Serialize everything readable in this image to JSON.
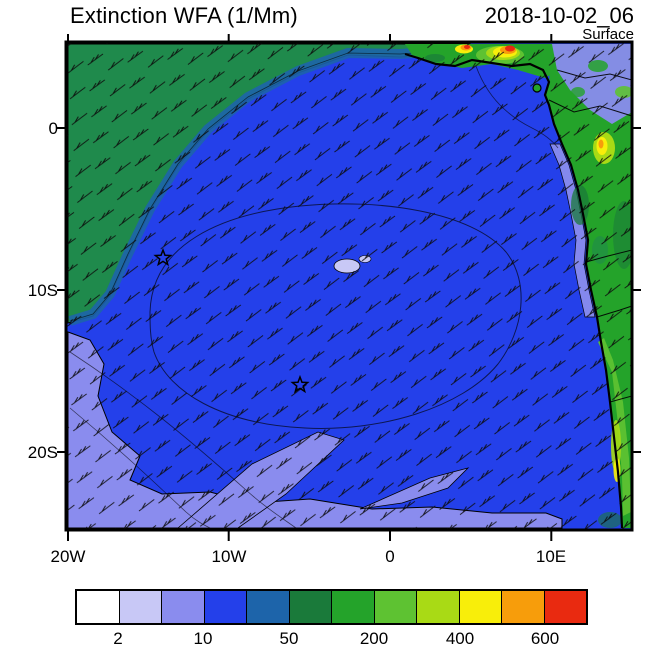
{
  "header": {
    "title": "Extinction WFA (1/Mm)",
    "datetime": "2018-10-02_06",
    "level": "Surface"
  },
  "axes": {
    "x_ticks": [
      "20W",
      "10W",
      "0",
      "10E"
    ],
    "y_ticks": [
      "0",
      "10S",
      "20S"
    ]
  },
  "colorbar": {
    "labels": [
      "2",
      "10",
      "50",
      "200",
      "400",
      "600"
    ],
    "colors": [
      "#ffffff",
      "#c8c8f6",
      "#8a8cee",
      "#2440ea",
      "#1d64aa",
      "#1a7a3a",
      "#24a32a",
      "#5ec232",
      "#a9da15",
      "#f8ee0a",
      "#f79d0b",
      "#e92a10"
    ]
  },
  "chart_data": {
    "type": "heatmap",
    "title": "Extinction WFA (1/Mm)",
    "time": "2018-10-02_06",
    "level": "Surface",
    "x_axis": {
      "ticks": [
        "20W",
        "10W",
        "0",
        "10E"
      ],
      "approx_range_deg": [
        -22,
        15
      ]
    },
    "y_axis": {
      "ticks": [
        "0",
        "10S",
        "20S"
      ],
      "approx_range_deg": [
        5,
        -26
      ]
    },
    "color_levels": [
      2,
      10,
      50,
      200,
      400,
      600
    ],
    "colorbar_colors": [
      "#ffffff",
      "#c8c8f6",
      "#8a8cee",
      "#2440ea",
      "#1d64aa",
      "#1a7a3a",
      "#24a32a",
      "#5ec232",
      "#a9da15",
      "#f8ee0a",
      "#f79d0b",
      "#e92a10"
    ],
    "units": "1/Mm",
    "overlays": [
      "wind-barbs",
      "africa-coastline",
      "country-borders",
      "star-markers"
    ],
    "markers_approx_deg": [
      {
        "lon": -14.0,
        "lat": -8.0
      },
      {
        "lon": -5.7,
        "lat": -16.0
      }
    ],
    "field_summary": [
      "open South Atlantic mostly in 10-50 band (blue)",
      "northwest sector elevated 50-200 (teal/green wedge)",
      "southwest corner and southern fringe low 2-10 (lavender)",
      "hotspots 400-700 along Gulf of Guinea coast (yellow/orange/red)",
      "elevated values over central/southern African land (green, yellow-green)"
    ]
  }
}
